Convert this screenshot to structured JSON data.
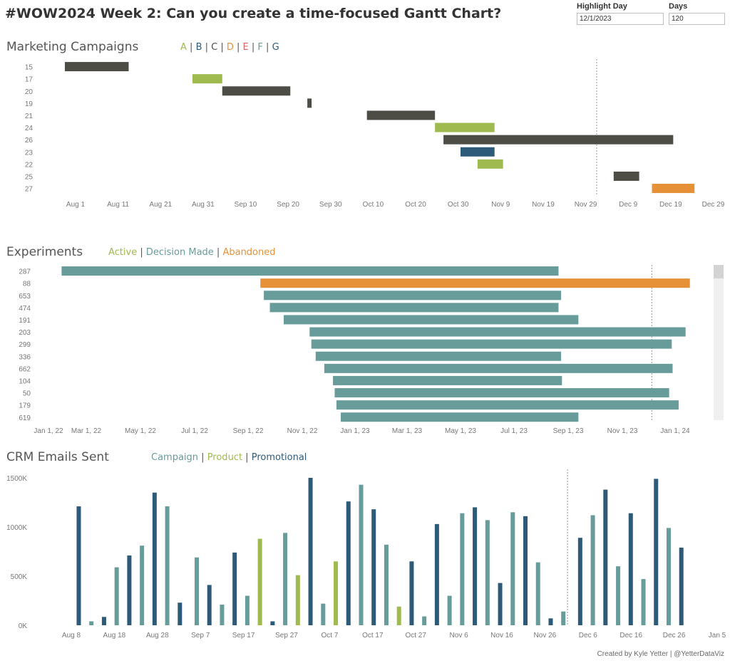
{
  "header": {
    "title": "#WOW2024 Week 2: Can you create a time-focused Gantt Chart?",
    "highlight_day_label": "Highlight Day",
    "highlight_day_value": "12/1/2023",
    "days_label": "Days",
    "days_value": "120"
  },
  "colors": {
    "dark": "#4d4d46",
    "green": "#9fbb4f",
    "teal": "#679c9a",
    "navy": "#2e5a79",
    "orange": "#e69138",
    "red": "#e06666",
    "axis_text": "#777777",
    "ref_line": "#999999"
  },
  "marketing": {
    "title": "Marketing Campaigns",
    "legend": [
      {
        "label": "A",
        "color": "#9fbb4f"
      },
      {
        "label": "B",
        "color": "#2e5a79"
      },
      {
        "label": "C",
        "color": "#4d4d46"
      },
      {
        "label": "D",
        "color": "#e69138"
      },
      {
        "label": "E",
        "color": "#e06666"
      },
      {
        "label": "F",
        "color": "#679c9a"
      },
      {
        "label": "G",
        "color": "#2e5a79"
      }
    ]
  },
  "experiments": {
    "title": "Experiments",
    "legend": [
      {
        "label": "Active",
        "color": "#9fbb4f"
      },
      {
        "label": "Decision Made",
        "color": "#679c9a"
      },
      {
        "label": "Abandoned",
        "color": "#e69138"
      }
    ]
  },
  "crm": {
    "title": "CRM Emails Sent",
    "legend": [
      {
        "label": "Campaign",
        "color": "#679c9a"
      },
      {
        "label": "Product",
        "color": "#9fbb4f"
      },
      {
        "label": "Promotional",
        "color": "#2e5a79"
      }
    ]
  },
  "credit": "Created by Kyle Yetter | @YetterDataViz",
  "chart_data": [
    {
      "type": "gantt",
      "title": "Marketing Campaigns",
      "x_axis": "date",
      "xlim": [
        "2023-07-28",
        "2023-12-30"
      ],
      "ticks": [
        "Aug 1",
        "Aug 11",
        "Aug 21",
        "Aug 31",
        "Sep 10",
        "Sep 20",
        "Sep 30",
        "Oct 10",
        "Oct 20",
        "Oct 30",
        "Nov 9",
        "Nov 19",
        "Nov 29",
        "Dec 9",
        "Dec 19",
        "Dec 29"
      ],
      "reference_date": "2023-12-01",
      "rows": [
        {
          "label": "15",
          "start": "2023-07-29",
          "end": "2023-08-13",
          "category": "C"
        },
        {
          "label": "17",
          "start": "2023-08-28",
          "end": "2023-09-04",
          "category": "A"
        },
        {
          "label": "20",
          "start": "2023-09-04",
          "end": "2023-09-20",
          "category": "C"
        },
        {
          "label": "19",
          "start": "2023-09-24",
          "end": "2023-09-25",
          "category": "C"
        },
        {
          "label": "21",
          "start": "2023-10-08",
          "end": "2023-10-24",
          "category": "C"
        },
        {
          "label": "24",
          "start": "2023-10-24",
          "end": "2023-11-07",
          "category": "A"
        },
        {
          "label": "26",
          "start": "2023-10-26",
          "end": "2023-12-19",
          "category": "C"
        },
        {
          "label": "23",
          "start": "2023-10-30",
          "end": "2023-11-07",
          "category": "B"
        },
        {
          "label": "22",
          "start": "2023-11-03",
          "end": "2023-11-09",
          "category": "A"
        },
        {
          "label": "25",
          "start": "2023-12-05",
          "end": "2023-12-11",
          "category": "C"
        },
        {
          "label": "27",
          "start": "2023-12-14",
          "end": "2023-12-24",
          "category": "D"
        }
      ]
    },
    {
      "type": "gantt",
      "title": "Experiments",
      "x_axis": "date",
      "xlim": [
        "2022-01-01",
        "2024-01-20"
      ],
      "ticks": [
        "Jan 1, 22",
        "Mar 1, 22",
        "May 1, 22",
        "Jul 1, 22",
        "Sep 1, 22",
        "Nov 1, 22",
        "Jan 1, 23",
        "Mar 1, 23",
        "May 1, 23",
        "Jul 1, 23",
        "Sep 1, 23",
        "Nov 1, 23",
        "Jan 1, 24"
      ],
      "reference_date": "2023-12-01",
      "rows": [
        {
          "label": "287",
          "start": "2022-01-17",
          "end": "2023-08-15",
          "status": "Decision Made"
        },
        {
          "label": "88",
          "start": "2022-09-04",
          "end": "2024-01-14",
          "status": "Abandoned"
        },
        {
          "label": "653",
          "start": "2022-09-08",
          "end": "2023-08-18",
          "status": "Decision Made"
        },
        {
          "label": "474",
          "start": "2022-09-15",
          "end": "2023-08-15",
          "status": "Decision Made"
        },
        {
          "label": "191",
          "start": "2022-10-01",
          "end": "2023-09-07",
          "status": "Decision Made"
        },
        {
          "label": "203",
          "start": "2022-10-31",
          "end": "2024-01-09",
          "status": "Decision Made"
        },
        {
          "label": "299",
          "start": "2022-11-02",
          "end": "2023-12-24",
          "status": "Decision Made"
        },
        {
          "label": "336",
          "start": "2022-11-07",
          "end": "2023-08-18",
          "status": "Decision Made"
        },
        {
          "label": "662",
          "start": "2022-11-17",
          "end": "2023-12-25",
          "status": "Decision Made"
        },
        {
          "label": "104",
          "start": "2022-11-27",
          "end": "2023-08-19",
          "status": "Decision Made"
        },
        {
          "label": "50",
          "start": "2022-11-29",
          "end": "2023-12-21",
          "status": "Decision Made"
        },
        {
          "label": "179",
          "start": "2022-12-01",
          "end": "2024-01-01",
          "status": "Decision Made"
        },
        {
          "label": "619",
          "start": "2022-12-06",
          "end": "2023-09-07",
          "status": "Decision Made"
        }
      ]
    },
    {
      "type": "bar",
      "title": "CRM Emails Sent",
      "x_axis": "date",
      "xlim": [
        "2023-08-01",
        "2024-01-05"
      ],
      "ticks": [
        "Aug 8",
        "Aug 18",
        "Aug 28",
        "Sep 7",
        "Sep 17",
        "Sep 27",
        "Oct 7",
        "Oct 17",
        "Oct 27",
        "Nov 6",
        "Nov 16",
        "Nov 26",
        "Dec 6",
        "Dec 16",
        "Dec 26",
        "Jan 5"
      ],
      "y_ticks": [
        "0K",
        "500K",
        "1000K",
        "1500K"
      ],
      "ylim": [
        0,
        1500000
      ],
      "reference_date": "2023-12-01",
      "bars": [
        {
          "date": "2023-08-07",
          "value": 1210000,
          "type": "Promotional"
        },
        {
          "date": "2023-08-10",
          "value": 40000,
          "type": "Campaign"
        },
        {
          "date": "2023-08-13",
          "value": 85000,
          "type": "Promotional"
        },
        {
          "date": "2023-08-16",
          "value": 590000,
          "type": "Campaign"
        },
        {
          "date": "2023-08-19",
          "value": 710000,
          "type": "Promotional"
        },
        {
          "date": "2023-08-22",
          "value": 810000,
          "type": "Campaign"
        },
        {
          "date": "2023-08-25",
          "value": 1350000,
          "type": "Promotional"
        },
        {
          "date": "2023-08-28",
          "value": 1210000,
          "type": "Campaign"
        },
        {
          "date": "2023-08-31",
          "value": 230000,
          "type": "Promotional"
        },
        {
          "date": "2023-09-04",
          "value": 690000,
          "type": "Campaign"
        },
        {
          "date": "2023-09-07",
          "value": 410000,
          "type": "Promotional"
        },
        {
          "date": "2023-09-10",
          "value": 210000,
          "type": "Campaign"
        },
        {
          "date": "2023-09-13",
          "value": 740000,
          "type": "Promotional"
        },
        {
          "date": "2023-09-16",
          "value": 300000,
          "type": "Campaign"
        },
        {
          "date": "2023-09-19",
          "value": 880000,
          "type": "Product"
        },
        {
          "date": "2023-09-22",
          "value": 40000,
          "type": "Promotional"
        },
        {
          "date": "2023-09-25",
          "value": 940000,
          "type": "Campaign"
        },
        {
          "date": "2023-09-28",
          "value": 510000,
          "type": "Product"
        },
        {
          "date": "2023-10-01",
          "value": 1500000,
          "type": "Promotional"
        },
        {
          "date": "2023-10-04",
          "value": 220000,
          "type": "Campaign"
        },
        {
          "date": "2023-10-07",
          "value": 650000,
          "type": "Product"
        },
        {
          "date": "2023-10-10",
          "value": 1260000,
          "type": "Promotional"
        },
        {
          "date": "2023-10-13",
          "value": 1430000,
          "type": "Campaign"
        },
        {
          "date": "2023-10-16",
          "value": 1180000,
          "type": "Promotional"
        },
        {
          "date": "2023-10-19",
          "value": 820000,
          "type": "Campaign"
        },
        {
          "date": "2023-10-22",
          "value": 190000,
          "type": "Product"
        },
        {
          "date": "2023-10-25",
          "value": 650000,
          "type": "Promotional"
        },
        {
          "date": "2023-10-28",
          "value": 90000,
          "type": "Campaign"
        },
        {
          "date": "2023-10-31",
          "value": 1030000,
          "type": "Promotional"
        },
        {
          "date": "2023-11-03",
          "value": 300000,
          "type": "Campaign"
        },
        {
          "date": "2023-11-06",
          "value": 1140000,
          "type": "Campaign"
        },
        {
          "date": "2023-11-09",
          "value": 1200000,
          "type": "Promotional"
        },
        {
          "date": "2023-11-12",
          "value": 1070000,
          "type": "Campaign"
        },
        {
          "date": "2023-11-15",
          "value": 430000,
          "type": "Promotional"
        },
        {
          "date": "2023-11-18",
          "value": 1150000,
          "type": "Campaign"
        },
        {
          "date": "2023-11-21",
          "value": 1110000,
          "type": "Promotional"
        },
        {
          "date": "2023-11-24",
          "value": 640000,
          "type": "Campaign"
        },
        {
          "date": "2023-11-27",
          "value": 70000,
          "type": "Promotional"
        },
        {
          "date": "2023-11-30",
          "value": 140000,
          "type": "Campaign"
        },
        {
          "date": "2023-12-04",
          "value": 890000,
          "type": "Promotional"
        },
        {
          "date": "2023-12-07",
          "value": 1120000,
          "type": "Campaign"
        },
        {
          "date": "2023-12-10",
          "value": 1380000,
          "type": "Promotional"
        },
        {
          "date": "2023-12-13",
          "value": 600000,
          "type": "Campaign"
        },
        {
          "date": "2023-12-16",
          "value": 1140000,
          "type": "Promotional"
        },
        {
          "date": "2023-12-19",
          "value": 470000,
          "type": "Campaign"
        },
        {
          "date": "2023-12-22",
          "value": 1490000,
          "type": "Promotional"
        },
        {
          "date": "2023-12-25",
          "value": 990000,
          "type": "Campaign"
        },
        {
          "date": "2023-12-28",
          "value": 790000,
          "type": "Promotional"
        }
      ]
    }
  ]
}
